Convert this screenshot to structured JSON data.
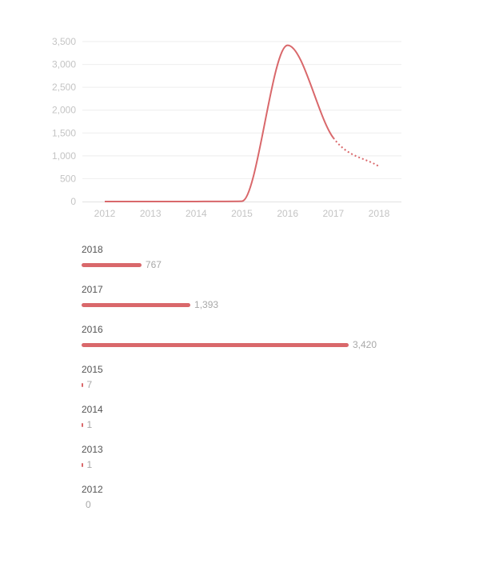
{
  "accent_color": "#d9686b",
  "chart_data": [
    {
      "type": "line",
      "x": [
        "2012",
        "2013",
        "2014",
        "2015",
        "2016",
        "2017",
        "2018"
      ],
      "series": [
        {
          "values": [
            0,
            1,
            1,
            7,
            3420,
            1393,
            767
          ]
        }
      ],
      "projected_from": "2017",
      "ylim": [
        0,
        3500
      ],
      "yticks": [
        0,
        500,
        1000,
        1500,
        2000,
        2500,
        3000,
        3500
      ],
      "ytick_labels": [
        "0",
        "500",
        "1,000",
        "1,500",
        "2,000",
        "2,500",
        "3,000",
        "3,500"
      ],
      "grid": true
    },
    {
      "type": "bar",
      "orientation": "horizontal",
      "categories": [
        "2018",
        "2017",
        "2016",
        "2015",
        "2014",
        "2013",
        "2012"
      ],
      "values": [
        767,
        1393,
        3420,
        7,
        1,
        1,
        0
      ],
      "value_labels": [
        "767",
        "1,393",
        "3,420",
        "7",
        "1",
        "1",
        "0"
      ]
    }
  ]
}
